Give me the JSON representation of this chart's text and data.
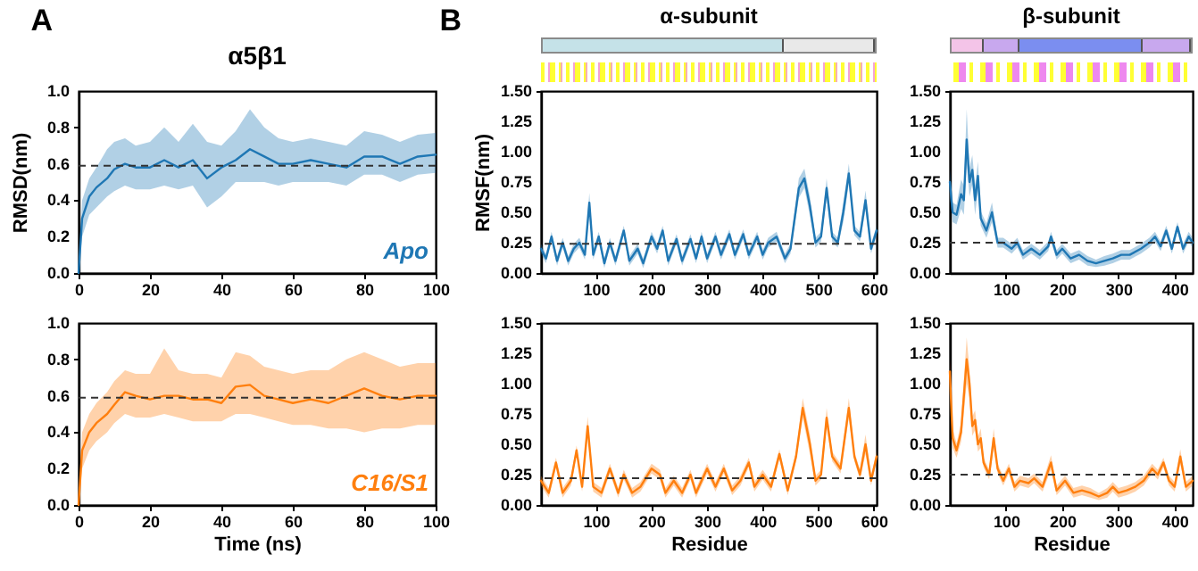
{
  "chart_data": [
    {
      "type": "line",
      "title": "α5β1",
      "annotations": [
        "A"
      ],
      "ylabel": "RMSD(nm)",
      "x": [
        0,
        1,
        3,
        5,
        8,
        10,
        13,
        16,
        20,
        24,
        28,
        32,
        36,
        40,
        44,
        48,
        52,
        56,
        60,
        65,
        70,
        75,
        80,
        85,
        90,
        95,
        100
      ],
      "xlim": [
        0,
        100
      ],
      "xticks": [
        0,
        20,
        40,
        60,
        80,
        100
      ],
      "ylim": [
        0,
        1
      ],
      "yticks": [
        {
          "value": 0,
          "label": "0.0"
        },
        {
          "value": 0.2,
          "label": "0.2"
        },
        {
          "value": 0.4,
          "label": "0.4"
        },
        {
          "value": 0.6,
          "label": "0.6"
        },
        {
          "value": 0.8,
          "label": "0.8"
        },
        {
          "value": 1,
          "label": "1.0"
        }
      ],
      "series": [
        {
          "name": "Apo",
          "color": "#1f77b4",
          "values": [
            0,
            0.3,
            0.42,
            0.47,
            0.52,
            0.57,
            0.6,
            0.58,
            0.58,
            0.62,
            0.58,
            0.62,
            0.52,
            0.58,
            0.62,
            0.68,
            0.64,
            0.6,
            0.6,
            0.62,
            0.6,
            0.58,
            0.64,
            0.64,
            0.6,
            0.64,
            0.65
          ],
          "lower": [
            0,
            0.2,
            0.32,
            0.36,
            0.42,
            0.45,
            0.48,
            0.46,
            0.46,
            0.48,
            0.46,
            0.48,
            0.36,
            0.42,
            0.5,
            0.5,
            0.5,
            0.48,
            0.5,
            0.5,
            0.5,
            0.48,
            0.54,
            0.54,
            0.5,
            0.54,
            0.55
          ],
          "upper": [
            0,
            0.4,
            0.52,
            0.58,
            0.68,
            0.72,
            0.74,
            0.7,
            0.72,
            0.8,
            0.72,
            0.82,
            0.72,
            0.7,
            0.78,
            0.9,
            0.8,
            0.74,
            0.72,
            0.74,
            0.72,
            0.7,
            0.78,
            0.76,
            0.72,
            0.76,
            0.77
          ]
        }
      ],
      "ref_lines": [
        {
          "axis": "y",
          "value": 0.59,
          "color": "#333333",
          "line_style": "dashed"
        }
      ]
    },
    {
      "type": "line",
      "xlabel": "Time (ns)",
      "x": [
        0,
        1,
        3,
        5,
        8,
        10,
        13,
        16,
        20,
        24,
        28,
        32,
        36,
        40,
        44,
        48,
        52,
        56,
        60,
        65,
        70,
        75,
        80,
        85,
        90,
        95,
        100
      ],
      "xlim": [
        0,
        100
      ],
      "xticks": [
        0,
        20,
        40,
        60,
        80,
        100
      ],
      "ylim": [
        0,
        1
      ],
      "yticks": [
        {
          "value": 0,
          "label": "0.0"
        },
        {
          "value": 0.2,
          "label": "0.2"
        },
        {
          "value": 0.4,
          "label": "0.4"
        },
        {
          "value": 0.6,
          "label": "0.6"
        },
        {
          "value": 0.8,
          "label": "0.8"
        },
        {
          "value": 1,
          "label": "1.0"
        }
      ],
      "series": [
        {
          "name": "C16/S1",
          "color": "#ff7f0e",
          "values": [
            0,
            0.3,
            0.4,
            0.45,
            0.5,
            0.55,
            0.62,
            0.6,
            0.58,
            0.6,
            0.6,
            0.58,
            0.58,
            0.56,
            0.65,
            0.66,
            0.6,
            0.58,
            0.56,
            0.58,
            0.56,
            0.6,
            0.64,
            0.6,
            0.58,
            0.6,
            0.6
          ],
          "lower": [
            0,
            0.2,
            0.3,
            0.35,
            0.4,
            0.45,
            0.5,
            0.48,
            0.48,
            0.5,
            0.48,
            0.46,
            0.46,
            0.46,
            0.5,
            0.5,
            0.48,
            0.46,
            0.44,
            0.44,
            0.42,
            0.42,
            0.4,
            0.42,
            0.42,
            0.44,
            0.44
          ],
          "upper": [
            0,
            0.4,
            0.5,
            0.56,
            0.62,
            0.68,
            0.74,
            0.72,
            0.72,
            0.86,
            0.74,
            0.72,
            0.72,
            0.7,
            0.84,
            0.82,
            0.76,
            0.74,
            0.72,
            0.74,
            0.74,
            0.8,
            0.84,
            0.8,
            0.76,
            0.78,
            0.78
          ]
        }
      ],
      "ref_lines": [
        {
          "axis": "y",
          "value": 0.59,
          "color": "#333333",
          "line_style": "dashed"
        }
      ]
    },
    {
      "type": "line",
      "title": "α-subunit",
      "annotations": [
        "B"
      ],
      "ylabel": "RMSF(nm)",
      "x": [
        1,
        10,
        20,
        30,
        40,
        50,
        60,
        70,
        80,
        88,
        95,
        105,
        115,
        125,
        135,
        150,
        160,
        175,
        185,
        200,
        210,
        220,
        230,
        245,
        255,
        270,
        280,
        290,
        300,
        315,
        325,
        340,
        350,
        365,
        375,
        390,
        400,
        410,
        425,
        440,
        450,
        465,
        475,
        485,
        495,
        505,
        515,
        525,
        535,
        545,
        555,
        565,
        575,
        585,
        595,
        605
      ],
      "xlim": [
        1,
        605
      ],
      "xticks": [
        100,
        200,
        300,
        400,
        500,
        600
      ],
      "ylim": [
        0,
        1.5
      ],
      "yticks": [
        {
          "value": 0,
          "label": "0.00"
        },
        {
          "value": 0.25,
          "label": "0.25"
        },
        {
          "value": 0.5,
          "label": "0.50"
        },
        {
          "value": 0.75,
          "label": "0.75"
        },
        {
          "value": 1,
          "label": "1.00"
        },
        {
          "value": 1.25,
          "label": "1.25"
        },
        {
          "value": 1.5,
          "label": "1.50"
        }
      ],
      "series": [
        {
          "color": "#1f77b4",
          "values": [
            0.2,
            0.12,
            0.3,
            0.1,
            0.25,
            0.1,
            0.2,
            0.25,
            0.15,
            0.58,
            0.15,
            0.3,
            0.08,
            0.25,
            0.1,
            0.35,
            0.1,
            0.2,
            0.08,
            0.3,
            0.2,
            0.35,
            0.1,
            0.28,
            0.1,
            0.28,
            0.12,
            0.3,
            0.12,
            0.3,
            0.15,
            0.32,
            0.15,
            0.32,
            0.15,
            0.3,
            0.15,
            0.25,
            0.3,
            0.12,
            0.2,
            0.7,
            0.78,
            0.55,
            0.25,
            0.3,
            0.7,
            0.3,
            0.25,
            0.5,
            0.82,
            0.35,
            0.3,
            0.6,
            0.2,
            0.35
          ],
          "lower": [
            0.16,
            0.08,
            0.26,
            0.06,
            0.21,
            0.06,
            0.16,
            0.21,
            0.11,
            0.5,
            0.11,
            0.26,
            0.04,
            0.21,
            0.06,
            0.31,
            0.06,
            0.16,
            0.04,
            0.26,
            0.16,
            0.31,
            0.06,
            0.24,
            0.06,
            0.24,
            0.08,
            0.26,
            0.08,
            0.26,
            0.11,
            0.28,
            0.11,
            0.28,
            0.11,
            0.26,
            0.11,
            0.21,
            0.26,
            0.08,
            0.16,
            0.62,
            0.7,
            0.47,
            0.21,
            0.26,
            0.62,
            0.26,
            0.21,
            0.42,
            0.74,
            0.31,
            0.26,
            0.52,
            0.16,
            0.31
          ],
          "upper": [
            0.24,
            0.16,
            0.34,
            0.14,
            0.29,
            0.14,
            0.24,
            0.29,
            0.19,
            0.66,
            0.19,
            0.34,
            0.12,
            0.29,
            0.14,
            0.39,
            0.14,
            0.24,
            0.12,
            0.34,
            0.24,
            0.39,
            0.14,
            0.32,
            0.14,
            0.32,
            0.16,
            0.34,
            0.16,
            0.34,
            0.19,
            0.36,
            0.19,
            0.36,
            0.19,
            0.34,
            0.19,
            0.29,
            0.34,
            0.16,
            0.24,
            0.78,
            0.86,
            0.63,
            0.29,
            0.34,
            0.78,
            0.34,
            0.29,
            0.58,
            0.9,
            0.39,
            0.34,
            0.68,
            0.24,
            0.39
          ]
        }
      ],
      "ref_lines": [
        {
          "axis": "y",
          "value": 0.24,
          "color": "#333333",
          "line_style": "dashed"
        }
      ]
    },
    {
      "type": "line",
      "xlabel": "Residue",
      "x": [
        1,
        15,
        28,
        40,
        55,
        65,
        75,
        85,
        95,
        110,
        125,
        140,
        150,
        165,
        180,
        200,
        215,
        225,
        240,
        255,
        270,
        280,
        300,
        315,
        330,
        345,
        360,
        375,
        385,
        400,
        415,
        430,
        445,
        460,
        472,
        485,
        495,
        505,
        515,
        525,
        540,
        555,
        565,
        575,
        585,
        595,
        605
      ],
      "xlim": [
        1,
        605
      ],
      "xticks": [
        100,
        200,
        300,
        400,
        500,
        600
      ],
      "ylim": [
        0,
        1.5
      ],
      "yticks": [
        {
          "value": 0,
          "label": "0.00"
        },
        {
          "value": 0.25,
          "label": "0.25"
        },
        {
          "value": 0.5,
          "label": "0.50"
        },
        {
          "value": 0.75,
          "label": "0.75"
        },
        {
          "value": 1,
          "label": "1.00"
        },
        {
          "value": 1.25,
          "label": "1.25"
        },
        {
          "value": 1.5,
          "label": "1.50"
        }
      ],
      "series": [
        {
          "color": "#ff7f0e",
          "values": [
            0.2,
            0.1,
            0.35,
            0.1,
            0.2,
            0.45,
            0.15,
            0.65,
            0.15,
            0.1,
            0.3,
            0.1,
            0.25,
            0.1,
            0.15,
            0.3,
            0.25,
            0.1,
            0.2,
            0.1,
            0.25,
            0.1,
            0.3,
            0.15,
            0.3,
            0.12,
            0.2,
            0.35,
            0.15,
            0.25,
            0.15,
            0.42,
            0.12,
            0.4,
            0.8,
            0.5,
            0.2,
            0.25,
            0.72,
            0.4,
            0.3,
            0.8,
            0.4,
            0.25,
            0.5,
            0.2,
            0.4
          ],
          "lower": [
            0.16,
            0.06,
            0.31,
            0.06,
            0.16,
            0.41,
            0.11,
            0.57,
            0.11,
            0.06,
            0.26,
            0.06,
            0.21,
            0.06,
            0.11,
            0.26,
            0.21,
            0.06,
            0.16,
            0.06,
            0.21,
            0.06,
            0.26,
            0.11,
            0.26,
            0.08,
            0.16,
            0.31,
            0.11,
            0.21,
            0.11,
            0.38,
            0.08,
            0.36,
            0.72,
            0.42,
            0.16,
            0.21,
            0.64,
            0.36,
            0.26,
            0.72,
            0.36,
            0.21,
            0.42,
            0.16,
            0.36
          ],
          "upper": [
            0.24,
            0.14,
            0.39,
            0.14,
            0.24,
            0.49,
            0.19,
            0.73,
            0.19,
            0.14,
            0.34,
            0.14,
            0.29,
            0.14,
            0.19,
            0.34,
            0.29,
            0.14,
            0.24,
            0.14,
            0.29,
            0.14,
            0.34,
            0.19,
            0.34,
            0.16,
            0.24,
            0.39,
            0.19,
            0.29,
            0.19,
            0.46,
            0.16,
            0.44,
            0.88,
            0.58,
            0.24,
            0.29,
            0.8,
            0.44,
            0.34,
            0.88,
            0.44,
            0.29,
            0.58,
            0.24,
            0.44
          ]
        }
      ],
      "ref_lines": [
        {
          "axis": "y",
          "value": 0.22,
          "color": "#333333",
          "line_style": "dashed"
        }
      ]
    },
    {
      "type": "line",
      "title": "β-subunit",
      "x": [
        0,
        5,
        12,
        20,
        25,
        30,
        35,
        40,
        45,
        50,
        55,
        65,
        75,
        85,
        95,
        110,
        120,
        130,
        145,
        160,
        175,
        180,
        190,
        200,
        215,
        230,
        245,
        260,
        275,
        290,
        305,
        320,
        340,
        355,
        365,
        375,
        385,
        395,
        405,
        415,
        425,
        432
      ],
      "xlim": [
        0,
        432
      ],
      "xticks": [
        100,
        200,
        300,
        400
      ],
      "ylim": [
        0,
        1.5
      ],
      "yticks": [
        {
          "value": 0,
          "label": "0.00"
        },
        {
          "value": 0.25,
          "label": "0.25"
        },
        {
          "value": 0.5,
          "label": "0.50"
        },
        {
          "value": 0.75,
          "label": "0.75"
        },
        {
          "value": 1,
          "label": "1.00"
        },
        {
          "value": 1.25,
          "label": "1.25"
        },
        {
          "value": 1.5,
          "label": "1.50"
        }
      ],
      "series": [
        {
          "color": "#1f77b4",
          "values": [
            0.75,
            0.5,
            0.48,
            0.65,
            0.6,
            1.1,
            0.75,
            0.85,
            0.6,
            0.8,
            0.45,
            0.35,
            0.5,
            0.25,
            0.25,
            0.2,
            0.25,
            0.15,
            0.2,
            0.15,
            0.22,
            0.3,
            0.15,
            0.2,
            0.12,
            0.15,
            0.1,
            0.08,
            0.1,
            0.12,
            0.15,
            0.15,
            0.2,
            0.25,
            0.3,
            0.22,
            0.35,
            0.2,
            0.38,
            0.2,
            0.3,
            0.25
          ],
          "lower": [
            0.63,
            0.42,
            0.4,
            0.53,
            0.48,
            0.9,
            0.63,
            0.73,
            0.48,
            0.68,
            0.39,
            0.29,
            0.42,
            0.21,
            0.21,
            0.16,
            0.21,
            0.11,
            0.16,
            0.11,
            0.18,
            0.26,
            0.11,
            0.16,
            0.08,
            0.11,
            0.06,
            0.05,
            0.06,
            0.08,
            0.11,
            0.11,
            0.16,
            0.21,
            0.26,
            0.18,
            0.31,
            0.16,
            0.34,
            0.16,
            0.26,
            0.21
          ],
          "upper": [
            0.87,
            0.58,
            0.56,
            0.77,
            0.72,
            1.35,
            0.87,
            0.97,
            0.72,
            0.92,
            0.51,
            0.41,
            0.58,
            0.29,
            0.29,
            0.24,
            0.29,
            0.19,
            0.24,
            0.19,
            0.26,
            0.34,
            0.19,
            0.24,
            0.16,
            0.19,
            0.14,
            0.11,
            0.14,
            0.16,
            0.19,
            0.19,
            0.24,
            0.29,
            0.34,
            0.26,
            0.39,
            0.24,
            0.42,
            0.24,
            0.34,
            0.29
          ]
        }
      ],
      "ref_lines": [
        {
          "axis": "y",
          "value": 0.25,
          "color": "#333333",
          "line_style": "dashed"
        }
      ]
    },
    {
      "type": "line",
      "xlabel": "Residue",
      "x": [
        0,
        5,
        12,
        20,
        30,
        35,
        40,
        45,
        50,
        55,
        60,
        70,
        78,
        85,
        95,
        105,
        115,
        125,
        140,
        150,
        165,
        180,
        190,
        205,
        220,
        235,
        250,
        265,
        280,
        290,
        300,
        315,
        330,
        345,
        360,
        370,
        380,
        390,
        400,
        410,
        420,
        432
      ],
      "xlim": [
        0,
        432
      ],
      "xticks": [
        100,
        200,
        300,
        400
      ],
      "ylim": [
        0,
        1.5
      ],
      "yticks": [
        {
          "value": 0,
          "label": "0.00"
        },
        {
          "value": 0.25,
          "label": "0.25"
        },
        {
          "value": 0.5,
          "label": "0.50"
        },
        {
          "value": 0.75,
          "label": "0.75"
        },
        {
          "value": 1,
          "label": "1.00"
        },
        {
          "value": 1.25,
          "label": "1.25"
        },
        {
          "value": 1.5,
          "label": "1.50"
        }
      ],
      "series": [
        {
          "color": "#ff7f0e",
          "values": [
            1.1,
            0.55,
            0.45,
            0.6,
            1.2,
            1.0,
            0.65,
            0.7,
            0.5,
            0.55,
            0.35,
            0.25,
            0.55,
            0.3,
            0.2,
            0.3,
            0.15,
            0.2,
            0.18,
            0.22,
            0.15,
            0.35,
            0.12,
            0.2,
            0.1,
            0.12,
            0.1,
            0.07,
            0.1,
            0.15,
            0.1,
            0.12,
            0.15,
            0.2,
            0.3,
            0.25,
            0.35,
            0.2,
            0.15,
            0.4,
            0.15,
            0.2
          ],
          "lower": [
            0.98,
            0.47,
            0.39,
            0.52,
            1.0,
            0.88,
            0.57,
            0.62,
            0.44,
            0.47,
            0.31,
            0.21,
            0.47,
            0.26,
            0.16,
            0.26,
            0.11,
            0.16,
            0.14,
            0.18,
            0.11,
            0.29,
            0.08,
            0.16,
            0.06,
            0.08,
            0.06,
            0.04,
            0.06,
            0.11,
            0.06,
            0.08,
            0.11,
            0.16,
            0.26,
            0.21,
            0.31,
            0.16,
            0.11,
            0.34,
            0.11,
            0.16
          ],
          "upper": [
            1.22,
            0.63,
            0.51,
            0.68,
            1.38,
            1.12,
            0.73,
            0.78,
            0.56,
            0.63,
            0.39,
            0.29,
            0.63,
            0.34,
            0.24,
            0.34,
            0.19,
            0.24,
            0.22,
            0.26,
            0.19,
            0.41,
            0.16,
            0.24,
            0.14,
            0.16,
            0.14,
            0.1,
            0.14,
            0.19,
            0.14,
            0.16,
            0.19,
            0.24,
            0.34,
            0.29,
            0.39,
            0.24,
            0.19,
            0.46,
            0.19,
            0.24
          ]
        }
      ],
      "ref_lines": [
        {
          "axis": "y",
          "value": 0.25,
          "color": "#333333",
          "line_style": "dashed"
        }
      ]
    }
  ]
}
